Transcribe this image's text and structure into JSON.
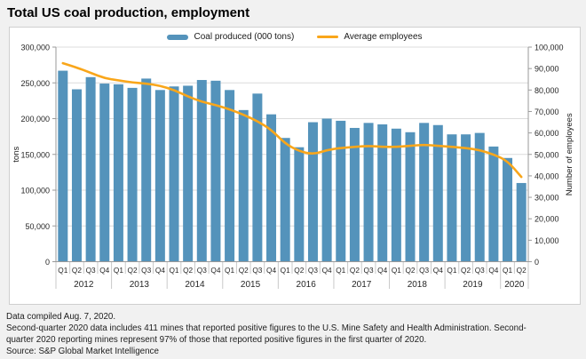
{
  "title": "Total US coal production, employment",
  "legend": [
    {
      "label": "Coal produced (000 tons)",
      "type": "bar",
      "color": "#5493bb"
    },
    {
      "label": "Average employees",
      "type": "line",
      "color": "#f9a61a"
    }
  ],
  "chart_data": {
    "type": "bar+line combo, dual axis",
    "years": [
      {
        "label": "2012",
        "quarters": [
          "Q1",
          "Q2",
          "Q3",
          "Q4"
        ]
      },
      {
        "label": "2013",
        "quarters": [
          "Q1",
          "Q2",
          "Q3",
          "Q4"
        ]
      },
      {
        "label": "2014",
        "quarters": [
          "Q1",
          "Q2",
          "Q3",
          "Q4"
        ]
      },
      {
        "label": "2015",
        "quarters": [
          "Q1",
          "Q2",
          "Q3",
          "Q4"
        ]
      },
      {
        "label": "2016",
        "quarters": [
          "Q1",
          "Q2",
          "Q3",
          "Q4"
        ]
      },
      {
        "label": "2017",
        "quarters": [
          "Q1",
          "Q2",
          "Q3",
          "Q4"
        ]
      },
      {
        "label": "2018",
        "quarters": [
          "Q1",
          "Q2",
          "Q3",
          "Q4"
        ]
      },
      {
        "label": "2019",
        "quarters": [
          "Q1",
          "Q2",
          "Q3",
          "Q4"
        ]
      },
      {
        "label": "2020",
        "quarters": [
          "Q1",
          "Q2"
        ]
      }
    ],
    "series": [
      {
        "name": "Coal produced (000 tons)",
        "type": "bar",
        "axis": "left",
        "color": "#5493bb",
        "values": [
          267000,
          241000,
          258000,
          249000,
          248000,
          243000,
          256000,
          240000,
          245000,
          246000,
          254000,
          253000,
          240000,
          212000,
          235000,
          206000,
          173000,
          160000,
          195000,
          200000,
          197000,
          187000,
          194000,
          192000,
          186000,
          181000,
          194000,
          191000,
          178000,
          178000,
          180000,
          161000,
          145000,
          110000
        ]
      },
      {
        "name": "Average employees",
        "type": "line",
        "axis": "right",
        "color": "#f9a61a",
        "values": [
          92500,
          90500,
          88000,
          85500,
          84500,
          83500,
          83000,
          82000,
          80000,
          77000,
          74500,
          73000,
          71000,
          68500,
          65500,
          61500,
          55000,
          51500,
          50000,
          52000,
          53000,
          53500,
          54000,
          53500,
          53500,
          54000,
          54500,
          54000,
          53500,
          53000,
          52000,
          50000,
          47000,
          39500
        ]
      }
    ],
    "left_axis": {
      "label": "tons",
      "min": 0,
      "max": 300000,
      "step": 50000,
      "ticks": [
        "0",
        "50,000",
        "100,000",
        "150,000",
        "200,000",
        "250,000",
        "300,000"
      ]
    },
    "right_axis": {
      "label": "Number of employees",
      "min": 0,
      "max": 100000,
      "step": 10000,
      "ticks": [
        "0",
        "10,000",
        "20,000",
        "30,000",
        "40,000",
        "50,000",
        "60,000",
        "70,000",
        "80,000",
        "90,000",
        "100,000"
      ]
    },
    "grid": "horizontal gridlines on",
    "legend_position": "top center"
  },
  "footer": {
    "lines": [
      "Data compiled Aug. 7, 2020.",
      "Second-quarter 2020 data includes 411 mines that reported positive figures to the U.S. Mine Safety and Health Administration. Second-",
      "quarter 2020 reporting mines represent 97% of those that reported positive figures in the first quarter of 2020.",
      "Source: S&P Global Market Intelligence"
    ]
  }
}
